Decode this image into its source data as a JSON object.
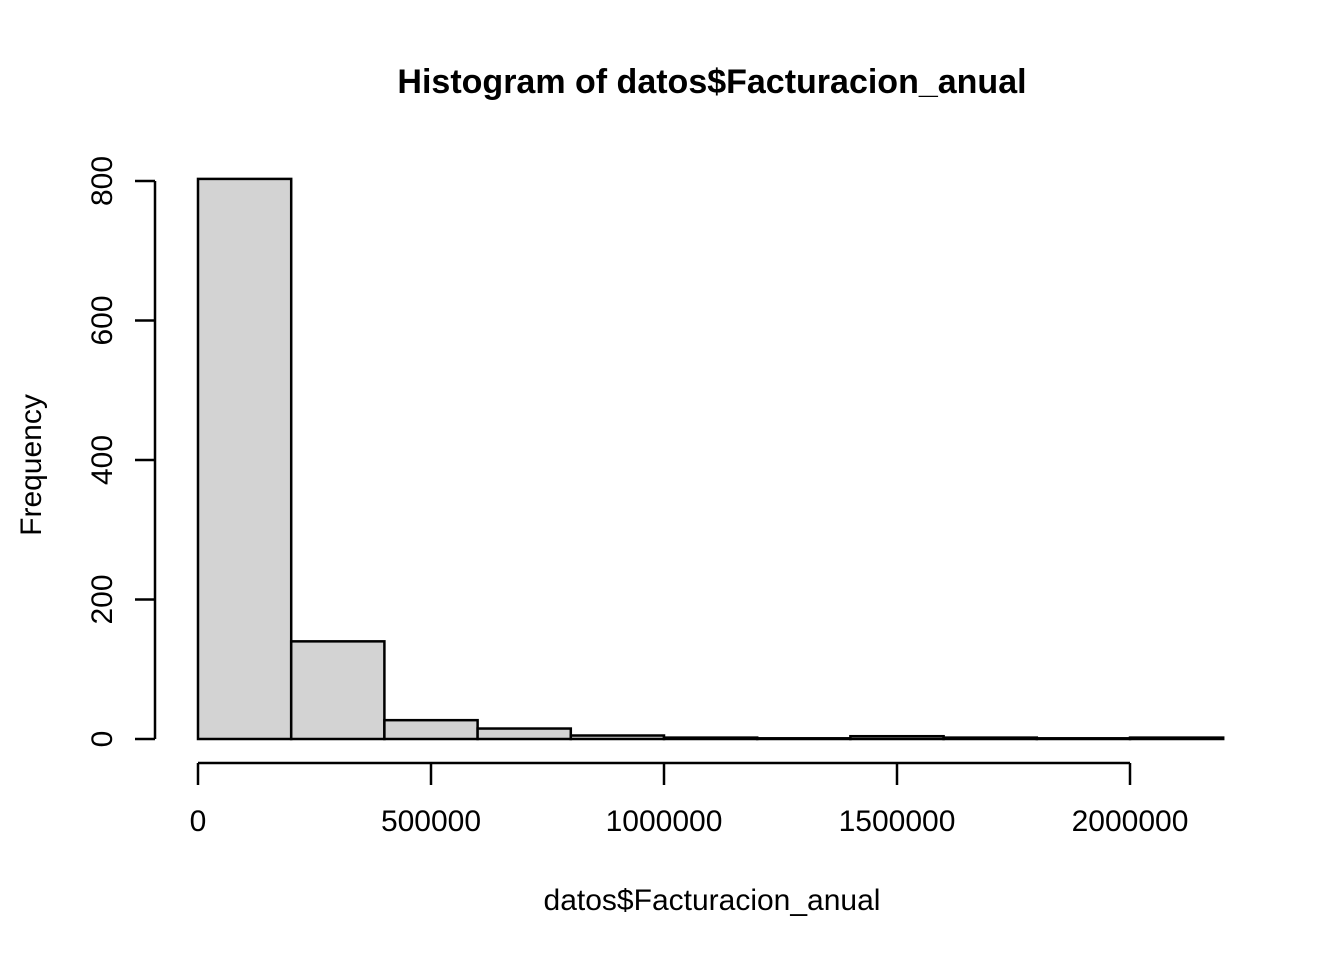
{
  "figure": {
    "background": "#ffffff"
  },
  "chart_data": {
    "type": "bar",
    "subtype": "histogram",
    "title": "Histogram of datos$Facturacion_anual",
    "xlabel": "datos$Facturacion_anual",
    "ylabel": "Frequency",
    "bar_fill": "#d3d3d3",
    "bar_border": "#000000",
    "axis_color": "#000000",
    "text_color": "#000000",
    "bin_width": 200000,
    "bin_edges": [
      0,
      200000,
      400000,
      600000,
      800000,
      1000000,
      1200000,
      1400000,
      1600000,
      1800000,
      2000000,
      2200000
    ],
    "counts": [
      803,
      140,
      27,
      15,
      5,
      2,
      1,
      4,
      2,
      1,
      2
    ],
    "x_ticks": [
      0,
      500000,
      1000000,
      1500000,
      2000000
    ],
    "x_tick_labels": [
      "0",
      "500000",
      "1000000",
      "1500000",
      "2000000"
    ],
    "y_ticks": [
      0,
      200,
      400,
      600,
      800
    ],
    "y_tick_labels": [
      "0",
      "200",
      "400",
      "600",
      "800"
    ],
    "xlim": [
      0,
      2200000
    ],
    "ylim": [
      0,
      803
    ],
    "grid": false,
    "legend": "none"
  }
}
